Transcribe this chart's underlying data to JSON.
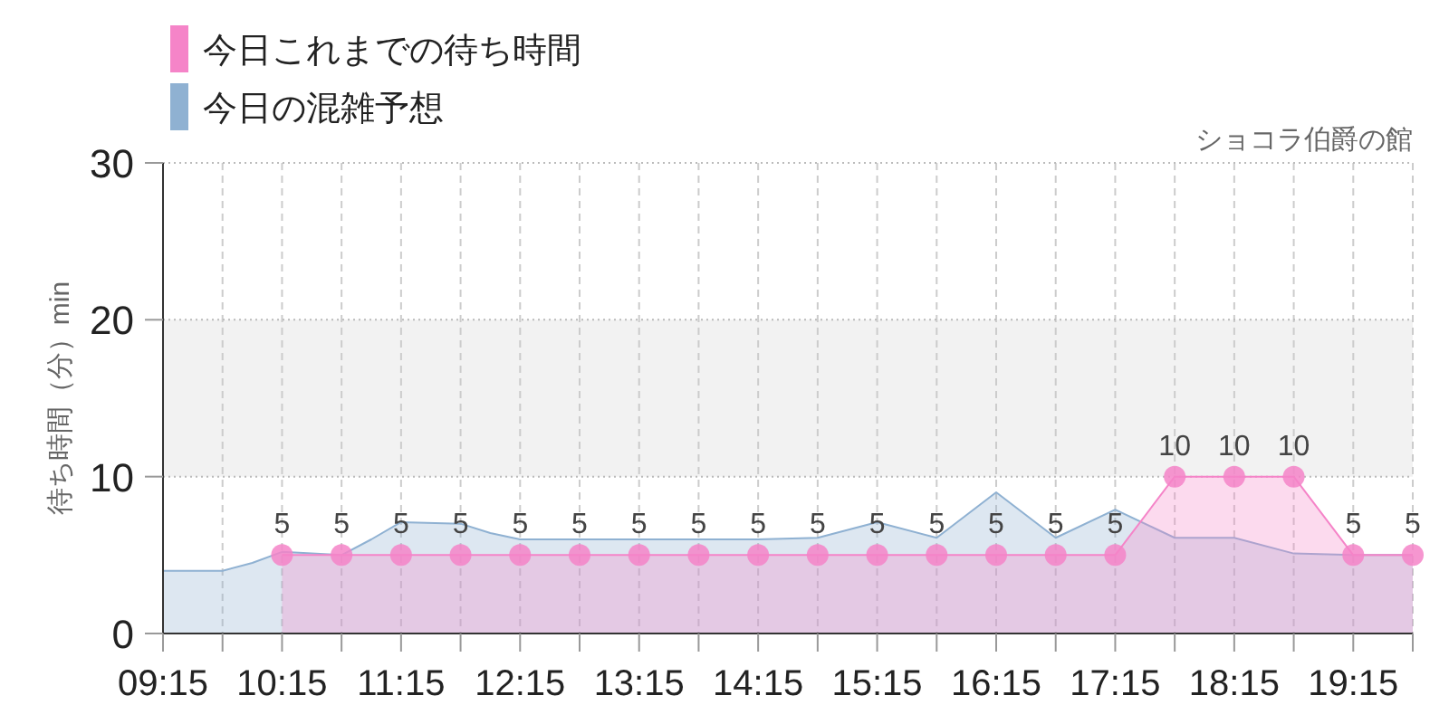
{
  "chart_data": {
    "type": "area",
    "title": "ショコラ伯爵の館",
    "ylabel": "待ち時間（分）min",
    "xlim": [
      9.25,
      19.75
    ],
    "ylim": [
      0,
      30
    ],
    "yticks": [
      0,
      10,
      20,
      30
    ],
    "xticks": [
      {
        "value": 9.25,
        "label": "09:15"
      },
      {
        "value": 9.75,
        "label": null
      },
      {
        "value": 10.25,
        "label": "10:15"
      },
      {
        "value": 10.75,
        "label": null
      },
      {
        "value": 11.25,
        "label": "11:15"
      },
      {
        "value": 11.75,
        "label": null
      },
      {
        "value": 12.25,
        "label": "12:15"
      },
      {
        "value": 12.75,
        "label": null
      },
      {
        "value": 13.25,
        "label": "13:15"
      },
      {
        "value": 13.75,
        "label": null
      },
      {
        "value": 14.25,
        "label": "14:15"
      },
      {
        "value": 14.75,
        "label": null
      },
      {
        "value": 15.25,
        "label": "15:15"
      },
      {
        "value": 15.75,
        "label": null
      },
      {
        "value": 16.25,
        "label": "16:15"
      },
      {
        "value": 16.75,
        "label": null
      },
      {
        "value": 17.25,
        "label": "17:15"
      },
      {
        "value": 17.75,
        "label": null
      },
      {
        "value": 18.25,
        "label": "18:15"
      },
      {
        "value": 18.75,
        "label": null
      },
      {
        "value": 19.25,
        "label": "19:15"
      },
      {
        "value": 19.75,
        "label": null
      }
    ],
    "grid": true,
    "legend": "top left",
    "bands": [
      {
        "axis": "y",
        "from": 10,
        "to": 20,
        "color": "#f2f2f2"
      }
    ],
    "series": [
      {
        "name": "今日の混雑予想",
        "color": "#8fb1d2",
        "marker": "none",
        "x": [
          9.25,
          9.75,
          10.0,
          10.25,
          10.5,
          10.75,
          11.0,
          11.25,
          11.75,
          12.0,
          12.25,
          13.25,
          14.25,
          14.75,
          15.25,
          15.75,
          16.25,
          16.75,
          17.25,
          17.75,
          18.25,
          18.75,
          19.25,
          19.75
        ],
        "values": [
          4.0,
          4.0,
          4.5,
          5.2,
          5.1,
          5.0,
          6.0,
          7.1,
          7.0,
          6.4,
          6.0,
          6.0,
          6.0,
          6.1,
          7.1,
          6.1,
          9.0,
          6.1,
          7.9,
          6.1,
          6.1,
          5.1,
          5.0,
          5.0
        ]
      },
      {
        "name": "今日これまでの待ち時間",
        "color": "#f584c8",
        "marker": "circle",
        "x": [
          10.25,
          10.75,
          11.25,
          11.75,
          12.25,
          12.75,
          13.25,
          13.75,
          14.25,
          14.75,
          15.25,
          15.75,
          16.25,
          16.75,
          17.25,
          17.75,
          18.25,
          18.75,
          19.25,
          19.75
        ],
        "values": [
          5,
          5,
          5,
          5,
          5,
          5,
          5,
          5,
          5,
          5,
          5,
          5,
          5,
          5,
          5,
          10,
          10,
          10,
          5,
          5
        ],
        "value_labels": [
          "5",
          "5",
          "5",
          "5",
          "5",
          "5",
          "5",
          "5",
          "5",
          "5",
          "5",
          "5",
          "5",
          "5",
          "5",
          "10",
          "10",
          "10",
          "5",
          "5"
        ]
      }
    ]
  }
}
